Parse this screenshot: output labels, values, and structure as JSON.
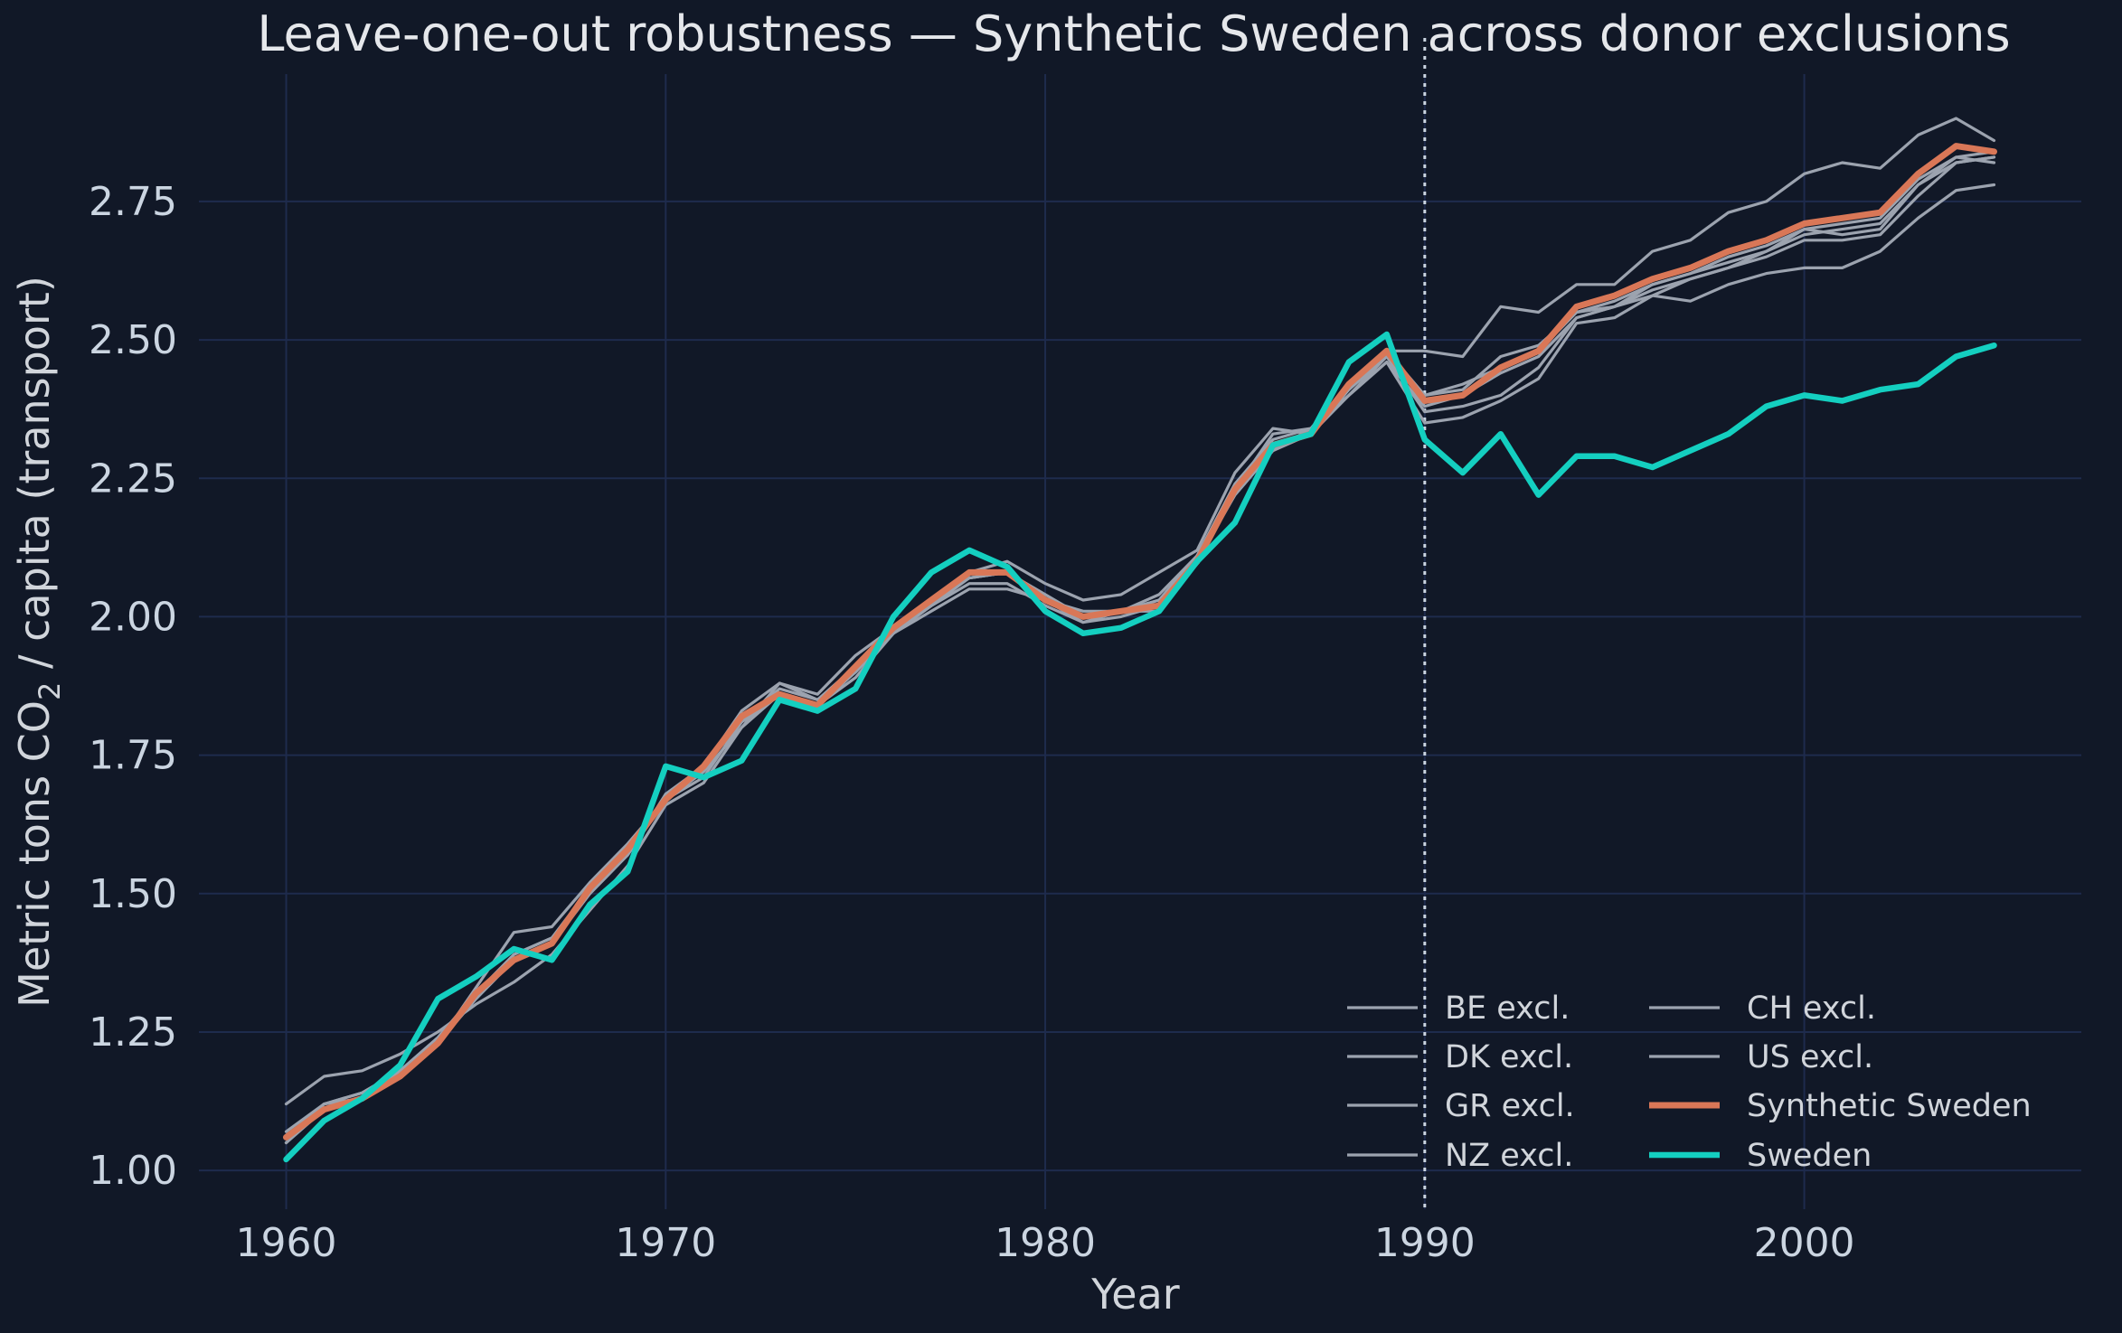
{
  "chart_data": {
    "type": "line",
    "title": "Leave-one-out robustness — Synthetic Sweden across donor exclusions",
    "xlabel": "Year",
    "ylabel_prefix": "Metric tons CO",
    "ylabel_sub": "2",
    "ylabel_suffix": " / capita (transport)",
    "xlim": [
      1957.7,
      2007.3
    ],
    "ylim": [
      0.93,
      2.98
    ],
    "xticks": [
      1960,
      1970,
      1980,
      1990,
      2000
    ],
    "yticks": [
      1.0,
      1.25,
      1.5,
      1.75,
      2.0,
      2.25,
      2.5,
      2.75
    ],
    "grid": true,
    "treatment_year": 1990,
    "legend_position": "lower-right",
    "years": [
      1960,
      1961,
      1962,
      1963,
      1964,
      1965,
      1966,
      1967,
      1968,
      1969,
      1970,
      1971,
      1972,
      1973,
      1974,
      1975,
      1976,
      1977,
      1978,
      1979,
      1980,
      1981,
      1982,
      1983,
      1984,
      1985,
      1986,
      1987,
      1988,
      1989,
      1990,
      1991,
      1992,
      1993,
      1994,
      1995,
      1996,
      1997,
      1998,
      1999,
      2000,
      2001,
      2002,
      2003,
      2004,
      2005
    ],
    "colors": {
      "background": "#111827",
      "grid": "#1e2b4d",
      "excl": "#9ca3af",
      "synthetic": "#d97757",
      "sweden": "#14cfc0",
      "treatment": "#cbd5e1"
    },
    "legend": [
      {
        "key": "BE excl.",
        "style": "excl"
      },
      {
        "key": "DK excl.",
        "style": "excl"
      },
      {
        "key": "GR excl.",
        "style": "excl"
      },
      {
        "key": "NZ excl.",
        "style": "excl"
      },
      {
        "key": "CH excl.",
        "style": "excl"
      },
      {
        "key": "US excl.",
        "style": "excl"
      },
      {
        "key": "Synthetic Sweden",
        "style": "synthetic"
      },
      {
        "key": "Sweden",
        "style": "sweden"
      }
    ],
    "series": [
      {
        "name": "BE excl.",
        "style": "excl",
        "values": [
          1.12,
          1.17,
          1.18,
          1.21,
          1.25,
          1.3,
          1.34,
          1.39,
          1.47,
          1.55,
          1.66,
          1.7,
          1.8,
          1.88,
          1.86,
          1.93,
          1.98,
          2.02,
          2.08,
          2.1,
          2.06,
          2.03,
          2.04,
          2.08,
          2.12,
          2.26,
          2.34,
          2.33,
          2.42,
          2.48,
          2.48,
          2.47,
          2.56,
          2.55,
          2.6,
          2.6,
          2.66,
          2.68,
          2.73,
          2.75,
          2.8,
          2.82,
          2.81,
          2.87,
          2.9,
          2.86
        ]
      },
      {
        "name": "DK excl.",
        "style": "excl",
        "values": [
          1.06,
          1.12,
          1.13,
          1.17,
          1.23,
          1.33,
          1.43,
          1.44,
          1.52,
          1.59,
          1.67,
          1.73,
          1.83,
          1.88,
          1.85,
          1.9,
          1.97,
          2.01,
          2.05,
          2.05,
          2.03,
          2.01,
          2.01,
          2.04,
          2.11,
          2.23,
          2.33,
          2.34,
          2.42,
          2.48,
          2.4,
          2.41,
          2.47,
          2.49,
          2.55,
          2.56,
          2.58,
          2.57,
          2.6,
          2.62,
          2.63,
          2.63,
          2.66,
          2.72,
          2.77,
          2.78
        ]
      },
      {
        "name": "GR excl.",
        "style": "excl",
        "values": [
          1.05,
          1.12,
          1.14,
          1.18,
          1.24,
          1.32,
          1.39,
          1.42,
          1.5,
          1.57,
          1.68,
          1.73,
          1.81,
          1.86,
          1.84,
          1.9,
          1.98,
          2.03,
          2.07,
          2.08,
          2.03,
          1.99,
          2.01,
          2.01,
          2.1,
          2.22,
          2.3,
          2.34,
          2.4,
          2.47,
          2.37,
          2.38,
          2.4,
          2.45,
          2.54,
          2.56,
          2.6,
          2.62,
          2.64,
          2.66,
          2.7,
          2.69,
          2.7,
          2.78,
          2.83,
          2.82
        ]
      },
      {
        "name": "NZ excl.",
        "style": "excl",
        "values": [
          1.06,
          1.12,
          1.13,
          1.18,
          1.23,
          1.31,
          1.38,
          1.41,
          1.5,
          1.57,
          1.67,
          1.72,
          1.8,
          1.86,
          1.84,
          1.89,
          1.97,
          2.02,
          2.06,
          2.06,
          2.02,
          1.99,
          2.0,
          2.02,
          2.11,
          2.24,
          2.32,
          2.34,
          2.4,
          2.46,
          2.35,
          2.36,
          2.39,
          2.43,
          2.53,
          2.54,
          2.58,
          2.61,
          2.63,
          2.65,
          2.68,
          2.68,
          2.69,
          2.76,
          2.82,
          2.83
        ]
      },
      {
        "name": "CH excl.",
        "style": "excl",
        "values": [
          1.07,
          1.12,
          1.14,
          1.18,
          1.24,
          1.32,
          1.39,
          1.42,
          1.51,
          1.58,
          1.67,
          1.73,
          1.81,
          1.87,
          1.85,
          1.91,
          1.98,
          2.03,
          2.07,
          2.08,
          2.04,
          2.0,
          2.01,
          2.03,
          2.11,
          2.23,
          2.31,
          2.33,
          2.41,
          2.47,
          2.4,
          2.42,
          2.45,
          2.48,
          2.55,
          2.57,
          2.6,
          2.62,
          2.65,
          2.67,
          2.7,
          2.71,
          2.72,
          2.79,
          2.83,
          2.84
        ]
      },
      {
        "name": "US excl.",
        "style": "excl",
        "values": [
          1.05,
          1.11,
          1.13,
          1.17,
          1.23,
          1.31,
          1.38,
          1.41,
          1.5,
          1.57,
          1.67,
          1.71,
          1.81,
          1.86,
          1.84,
          1.9,
          1.97,
          2.02,
          2.07,
          2.08,
          2.03,
          2.0,
          2.01,
          2.03,
          2.11,
          2.22,
          2.3,
          2.33,
          2.4,
          2.46,
          2.38,
          2.4,
          2.44,
          2.47,
          2.54,
          2.56,
          2.59,
          2.61,
          2.63,
          2.66,
          2.69,
          2.7,
          2.71,
          2.78,
          2.82,
          2.83
        ]
      },
      {
        "name": "Synthetic Sweden",
        "style": "synthetic",
        "values": [
          1.06,
          1.11,
          1.13,
          1.17,
          1.23,
          1.32,
          1.38,
          1.41,
          1.51,
          1.58,
          1.67,
          1.73,
          1.82,
          1.86,
          1.84,
          1.91,
          1.98,
          2.03,
          2.08,
          2.08,
          2.03,
          2.0,
          2.01,
          2.02,
          2.1,
          2.23,
          2.31,
          2.33,
          2.42,
          2.48,
          2.39,
          2.4,
          2.45,
          2.48,
          2.56,
          2.58,
          2.61,
          2.63,
          2.66,
          2.68,
          2.71,
          2.72,
          2.73,
          2.8,
          2.85,
          2.84
        ]
      },
      {
        "name": "Sweden",
        "style": "sweden",
        "values": [
          1.02,
          1.09,
          1.13,
          1.19,
          1.31,
          1.35,
          1.4,
          1.38,
          1.48,
          1.54,
          1.73,
          1.71,
          1.74,
          1.85,
          1.83,
          1.87,
          2.0,
          2.08,
          2.12,
          2.09,
          2.01,
          1.97,
          1.98,
          2.01,
          2.1,
          2.17,
          2.31,
          2.33,
          2.46,
          2.51,
          2.32,
          2.26,
          2.33,
          2.22,
          2.29,
          2.29,
          2.27,
          2.3,
          2.33,
          2.38,
          2.4,
          2.39,
          2.41,
          2.42,
          2.47,
          2.49
        ]
      }
    ]
  }
}
